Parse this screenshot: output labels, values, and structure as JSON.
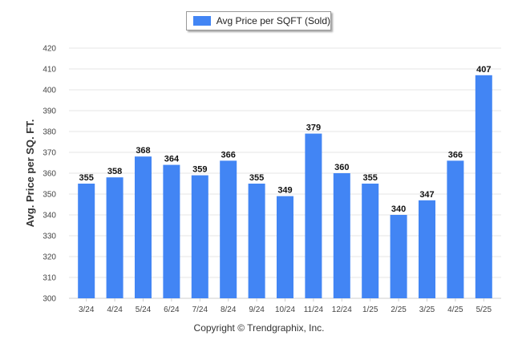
{
  "chart_data": {
    "type": "bar",
    "categories": [
      "3/24",
      "4/24",
      "5/24",
      "6/24",
      "7/24",
      "8/24",
      "9/24",
      "10/24",
      "11/24",
      "12/24",
      "1/25",
      "2/25",
      "3/25",
      "4/25",
      "5/25"
    ],
    "series": [
      {
        "name": "Avg Price per SQFT (Sold)",
        "values": [
          355,
          358,
          368,
          364,
          359,
          366,
          355,
          349,
          379,
          360,
          355,
          340,
          347,
          366,
          407
        ],
        "color": "#4285f4"
      }
    ],
    "xlabel": "",
    "ylabel": "Avg. Price per SQ. FT.",
    "ylim": [
      300,
      420
    ],
    "yticks": [
      300,
      310,
      320,
      330,
      340,
      350,
      360,
      370,
      380,
      390,
      400,
      410,
      420
    ],
    "grid": true,
    "legend": "top-center",
    "data_labels": true
  },
  "legend": {
    "label": "Avg Price per SQFT (Sold)"
  },
  "footer": {
    "copyright": "Copyright © Trendgraphix, Inc."
  }
}
